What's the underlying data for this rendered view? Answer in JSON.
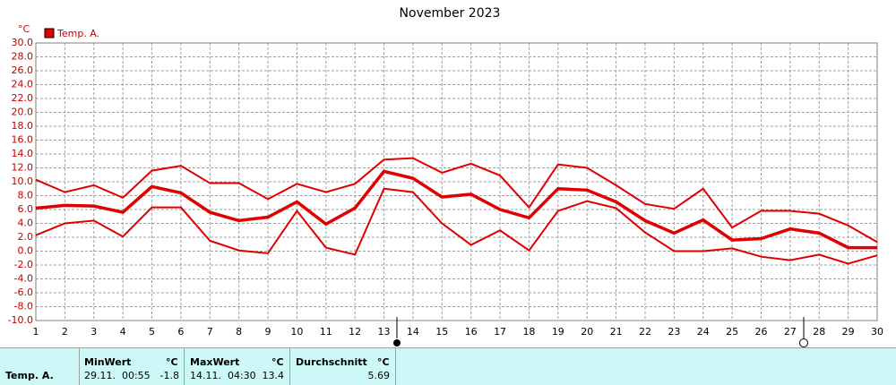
{
  "chart_data": {
    "type": "line",
    "title": "November 2023",
    "unit": "°C",
    "x": [
      1,
      2,
      3,
      4,
      5,
      6,
      7,
      8,
      9,
      10,
      11,
      12,
      13,
      14,
      15,
      16,
      17,
      18,
      19,
      20,
      21,
      22,
      23,
      24,
      25,
      26,
      27,
      28,
      29,
      30
    ],
    "xlim": [
      1,
      30
    ],
    "xticks": [
      1,
      2,
      3,
      4,
      5,
      6,
      7,
      8,
      9,
      10,
      11,
      12,
      13,
      14,
      15,
      16,
      17,
      18,
      19,
      20,
      21,
      22,
      23,
      24,
      25,
      26,
      27,
      28,
      29,
      30
    ],
    "ylim": [
      -10,
      30
    ],
    "yticks": [
      {
        "value": -10,
        "label": "-10.0"
      },
      {
        "value": -8,
        "label": "-8.0"
      },
      {
        "value": -6,
        "label": "-6.0"
      },
      {
        "value": -4,
        "label": "-4.0"
      },
      {
        "value": -2,
        "label": "-2.0"
      },
      {
        "value": 0,
        "label": "0.0"
      },
      {
        "value": 2,
        "label": "2.0"
      },
      {
        "value": 4,
        "label": "4.0"
      },
      {
        "value": 6,
        "label": "6.0"
      },
      {
        "value": 8,
        "label": "8.0"
      },
      {
        "value": 10,
        "label": "10.0"
      },
      {
        "value": 12,
        "label": "12.0"
      },
      {
        "value": 14,
        "label": "14.0"
      },
      {
        "value": 16,
        "label": "16.0"
      },
      {
        "value": 18,
        "label": "18.0"
      },
      {
        "value": 20,
        "label": "20.0"
      },
      {
        "value": 22,
        "label": "22.0"
      },
      {
        "value": 24,
        "label": "24.0"
      },
      {
        "value": 26,
        "label": "26.0"
      },
      {
        "value": 28,
        "label": "28.0"
      },
      {
        "value": 30,
        "label": "30.0"
      }
    ],
    "grid": true,
    "series": [
      {
        "name": "Temp. A.",
        "color": "#e00000",
        "values": [
          6.2,
          6.6,
          6.5,
          5.6,
          9.3,
          8.4,
          5.6,
          4.4,
          4.9,
          7.1,
          3.9,
          6.2,
          11.5,
          10.5,
          7.8,
          8.2,
          6.0,
          4.8,
          9.0,
          8.8,
          7.1,
          4.4,
          2.6,
          4.5,
          1.6,
          1.8,
          3.2,
          2.6,
          0.5,
          0.5
        ],
        "max": [
          10.3,
          8.5,
          9.5,
          7.7,
          11.6,
          12.3,
          9.8,
          9.8,
          7.5,
          9.7,
          8.5,
          9.7,
          13.2,
          13.4,
          11.3,
          12.6,
          10.9,
          6.3,
          12.5,
          12.0,
          9.5,
          6.8,
          6.1,
          9.0,
          3.4,
          5.8,
          5.8,
          5.4,
          3.7,
          1.3
        ],
        "min": [
          2.3,
          4.0,
          4.4,
          2.1,
          6.3,
          6.3,
          1.5,
          0.1,
          -0.3,
          5.8,
          0.5,
          -0.5,
          9.0,
          8.5,
          4.0,
          0.9,
          3.0,
          0.1,
          5.8,
          7.2,
          6.2,
          2.7,
          0.0,
          0.0,
          0.4,
          -0.8,
          -1.3,
          -0.5,
          -1.8,
          -0.6
        ]
      }
    ]
  },
  "stats": {
    "row_label": "Temp. A.",
    "min_header": "MinWert",
    "min_unit": "°C",
    "min_time": "29.11.  00:55",
    "min_value": -1.8,
    "max_header": "MaxWert",
    "max_unit": "°C",
    "max_time": "14.11.  04:30",
    "max_value": 13.4,
    "avg_header": "Durchschnitt",
    "avg_unit": "°C",
    "avg_value": 5.69
  }
}
